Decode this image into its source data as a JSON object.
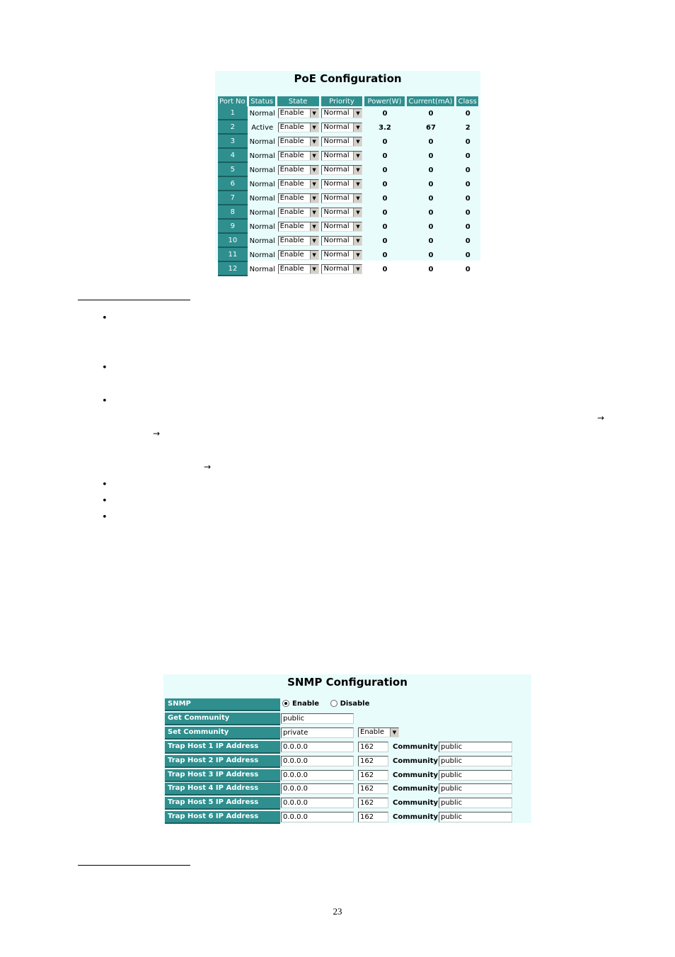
{
  "poe": {
    "title": "PoE Configuration",
    "headers": [
      "Port No",
      "Status",
      "State",
      "Priority",
      "Power(W)",
      "Current(mA)",
      "Class"
    ],
    "rows": [
      {
        "port": "1",
        "status": "Normal",
        "state": "Enable",
        "priority": "Normal",
        "power": "0",
        "current": "0",
        "class": "0"
      },
      {
        "port": "2",
        "status": "Active",
        "state": "Enable",
        "priority": "Normal",
        "power": "3.2",
        "current": "67",
        "class": "2"
      },
      {
        "port": "3",
        "status": "Normal",
        "state": "Enable",
        "priority": "Normal",
        "power": "0",
        "current": "0",
        "class": "0"
      },
      {
        "port": "4",
        "status": "Normal",
        "state": "Enable",
        "priority": "Normal",
        "power": "0",
        "current": "0",
        "class": "0"
      },
      {
        "port": "5",
        "status": "Normal",
        "state": "Enable",
        "priority": "Normal",
        "power": "0",
        "current": "0",
        "class": "0"
      },
      {
        "port": "6",
        "status": "Normal",
        "state": "Enable",
        "priority": "Normal",
        "power": "0",
        "current": "0",
        "class": "0"
      },
      {
        "port": "7",
        "status": "Normal",
        "state": "Enable",
        "priority": "Normal",
        "power": "0",
        "current": "0",
        "class": "0"
      },
      {
        "port": "8",
        "status": "Normal",
        "state": "Enable",
        "priority": "Normal",
        "power": "0",
        "current": "0",
        "class": "0"
      },
      {
        "port": "9",
        "status": "Normal",
        "state": "Enable",
        "priority": "Normal",
        "power": "0",
        "current": "0",
        "class": "0"
      },
      {
        "port": "10",
        "status": "Normal",
        "state": "Enable",
        "priority": "Normal",
        "power": "0",
        "current": "0",
        "class": "0"
      },
      {
        "port": "11",
        "status": "Normal",
        "state": "Enable",
        "priority": "Normal",
        "power": "0",
        "current": "0",
        "class": "0"
      },
      {
        "port": "12",
        "status": "Normal",
        "state": "Enable",
        "priority": "Normal",
        "power": "0",
        "current": "0",
        "class": "0"
      }
    ]
  },
  "snmp": {
    "title": "SNMP Configuration",
    "snmp_label": "SNMP",
    "enable_label": "Enable",
    "disable_label": "Disable",
    "get_community_label": "Get Community",
    "get_community_value": "public",
    "set_community_label": "Set Community",
    "set_community_value": "private",
    "set_community_state": "Enable",
    "community_label": "Community",
    "trap_hosts": [
      {
        "label": "Trap Host 1 IP Address",
        "ip": "0.0.0.0",
        "port": "162",
        "community": "public"
      },
      {
        "label": "Trap Host 2 IP Address",
        "ip": "0.0.0.0",
        "port": "162",
        "community": "public"
      },
      {
        "label": "Trap Host 3 IP Address",
        "ip": "0.0.0.0",
        "port": "162",
        "community": "public"
      },
      {
        "label": "Trap Host 4 IP Address",
        "ip": "0.0.0.0",
        "port": "162",
        "community": "public"
      },
      {
        "label": "Trap Host 5 IP Address",
        "ip": "0.0.0.0",
        "port": "162",
        "community": "public"
      },
      {
        "label": "Trap Host 6 IP Address",
        "ip": "0.0.0.0",
        "port": "162",
        "community": "public"
      }
    ]
  },
  "page": {
    "bullet_glyph": "•",
    "arrow_glyph": "→",
    "page_number": "23"
  }
}
